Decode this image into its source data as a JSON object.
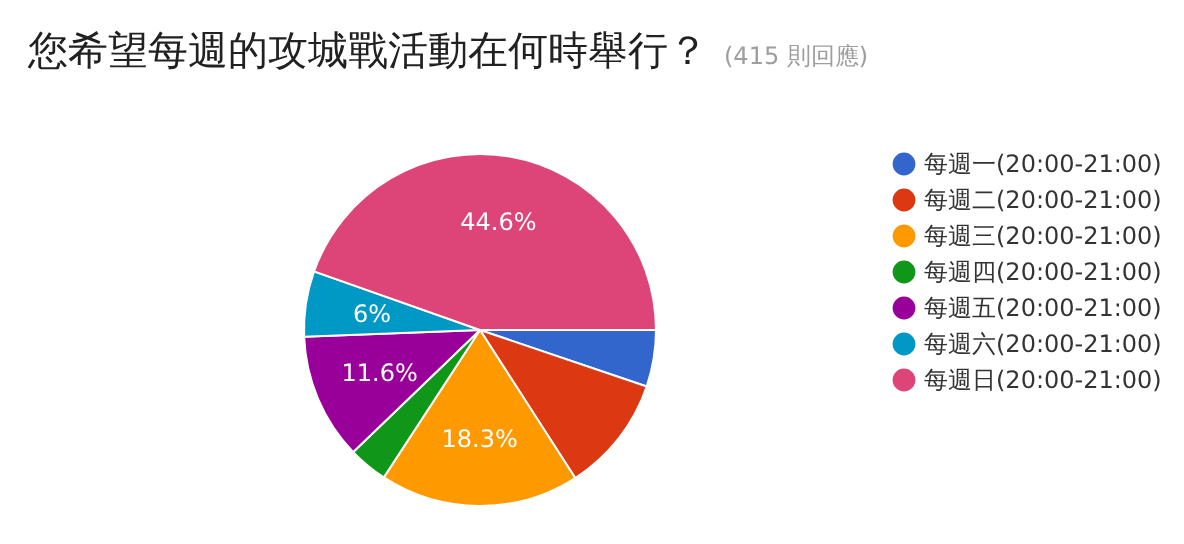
{
  "chart_data": {
    "type": "pie",
    "title": "您希望每週的攻城戰活動在何時舉行？",
    "subtitle": "(415 則回應)",
    "categories": [
      "每週一(20:00-21:00)",
      "每週二(20:00-21:00)",
      "每週三(20:00-21:00)",
      "每週四(20:00-21:00)",
      "每週五(20:00-21:00)",
      "每週六(20:00-21:00)",
      "每週日(20:00-21:00)"
    ],
    "values": [
      5.2,
      10.7,
      18.3,
      3.6,
      11.6,
      6,
      44.6
    ],
    "value_labels": [
      null,
      null,
      "18.3%",
      null,
      "11.6%",
      "6%",
      "44.6%"
    ],
    "colors": [
      "#3366cc",
      "#dc3912",
      "#ff9900",
      "#109618",
      "#990099",
      "#0099c6",
      "#dd4477"
    ],
    "legend": "right"
  }
}
